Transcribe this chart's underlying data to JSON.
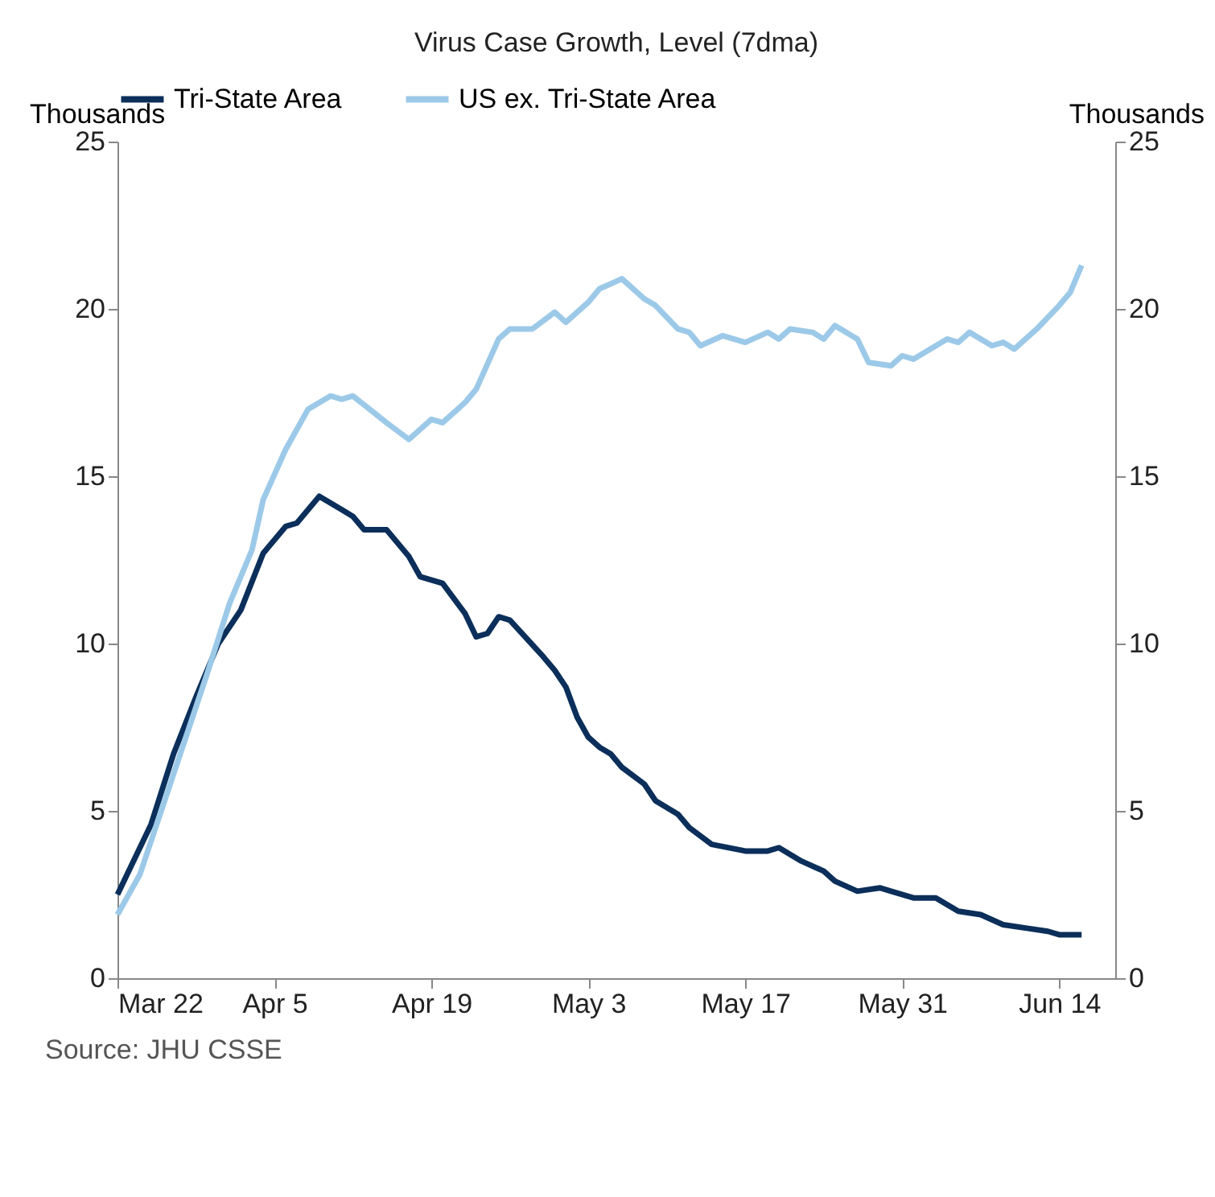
{
  "chart_data": {
    "type": "line",
    "title": "Virus Case Growth, Level (7dma)",
    "ylabel": "Thousands",
    "y2label": "Thousands",
    "annotations": [
      "Source: JHU CSSE"
    ],
    "xlim": [
      "--03-22",
      "--06-19"
    ],
    "xticks": [
      {
        "value": "--03-22",
        "label": "Mar 22"
      },
      {
        "value": "--04-05",
        "label": "Apr 5"
      },
      {
        "value": "--04-19",
        "label": "Apr 19"
      },
      {
        "value": "--05-03",
        "label": "May 3"
      },
      {
        "value": "--05-17",
        "label": "May 17"
      },
      {
        "value": "--05-31",
        "label": "May 31"
      },
      {
        "value": "--06-14",
        "label": "Jun 14"
      }
    ],
    "ylim": [
      0,
      25
    ],
    "yticks": [
      0,
      5,
      10,
      15,
      20,
      25
    ],
    "y2lim": [
      0,
      25
    ],
    "y2ticks": [
      0,
      5,
      10,
      15,
      20,
      25
    ],
    "grid": false,
    "legend": "top",
    "series": [
      {
        "name": "Tri-State Area",
        "color": "#0b2f5a",
        "x": [
          "--03-22",
          "--03-25",
          "--03-27",
          "--03-29",
          "--03-31",
          "--04-02",
          "--04-04",
          "--04-06",
          "--04-07",
          "--04-09",
          "--04-11",
          "--04-12",
          "--04-13",
          "--04-15",
          "--04-17",
          "--04-18",
          "--04-20",
          "--04-22",
          "--04-23",
          "--04-24",
          "--04-25",
          "--04-26",
          "--04-29",
          "--04-30",
          "--05-01",
          "--05-02",
          "--05-03",
          "--05-04",
          "--05-05",
          "--05-06",
          "--05-08",
          "--05-09",
          "--05-11",
          "--05-12",
          "--05-14",
          "--05-17",
          "--05-19",
          "--05-20",
          "--05-22",
          "--05-24",
          "--05-25",
          "--05-27",
          "--05-29",
          "--05-30",
          "--06-01",
          "--06-03",
          "--06-05",
          "--06-07",
          "--06-09",
          "--06-11",
          "--06-13",
          "--06-14",
          "--06-16"
        ],
        "values": [
          2.5,
          4.6,
          6.7,
          8.4,
          10.0,
          11.0,
          12.7,
          13.5,
          13.6,
          14.4,
          14.0,
          13.8,
          13.4,
          13.4,
          12.6,
          12.0,
          11.8,
          10.9,
          10.2,
          10.3,
          10.8,
          10.7,
          9.6,
          9.2,
          8.7,
          7.8,
          7.2,
          6.9,
          6.7,
          6.3,
          5.8,
          5.3,
          4.9,
          4.5,
          4.0,
          3.8,
          3.8,
          3.9,
          3.5,
          3.2,
          2.9,
          2.6,
          2.7,
          2.6,
          2.4,
          2.4,
          2.0,
          1.9,
          1.6,
          1.5,
          1.4,
          1.3,
          1.3
        ]
      },
      {
        "name": "US ex. Tri-State Area",
        "color": "#9cc9e8",
        "x": [
          "--03-22",
          "--03-24",
          "--03-26",
          "--03-28",
          "--03-30",
          "--04-01",
          "--04-03",
          "--04-04",
          "--04-06",
          "--04-08",
          "--04-10",
          "--04-11",
          "--04-12",
          "--04-15",
          "--04-17",
          "--04-19",
          "--04-20",
          "--04-22",
          "--04-23",
          "--04-25",
          "--04-26",
          "--04-28",
          "--04-30",
          "--05-01",
          "--05-03",
          "--05-04",
          "--05-06",
          "--05-08",
          "--05-09",
          "--05-11",
          "--05-12",
          "--05-13",
          "--05-15",
          "--05-17",
          "--05-19",
          "--05-20",
          "--05-21",
          "--05-23",
          "--05-24",
          "--05-25",
          "--05-27",
          "--05-28",
          "--05-30",
          "--05-31",
          "--06-01",
          "--06-04",
          "--06-05",
          "--06-06",
          "--06-08",
          "--06-09",
          "--06-10",
          "--06-12",
          "--06-14",
          "--06-15",
          "--06-16"
        ],
        "values": [
          1.9,
          3.1,
          5.1,
          7.1,
          9.1,
          11.2,
          12.8,
          14.3,
          15.8,
          17.0,
          17.4,
          17.3,
          17.4,
          16.6,
          16.1,
          16.7,
          16.6,
          17.2,
          17.6,
          19.1,
          19.4,
          19.4,
          19.9,
          19.6,
          20.2,
          20.6,
          20.9,
          20.3,
          20.1,
          19.4,
          19.3,
          18.9,
          19.2,
          19.0,
          19.3,
          19.1,
          19.4,
          19.3,
          19.1,
          19.5,
          19.1,
          18.4,
          18.3,
          18.6,
          18.5,
          19.1,
          19.0,
          19.3,
          18.9,
          19.0,
          18.8,
          19.4,
          20.1,
          20.5,
          21.3
        ]
      }
    ]
  }
}
